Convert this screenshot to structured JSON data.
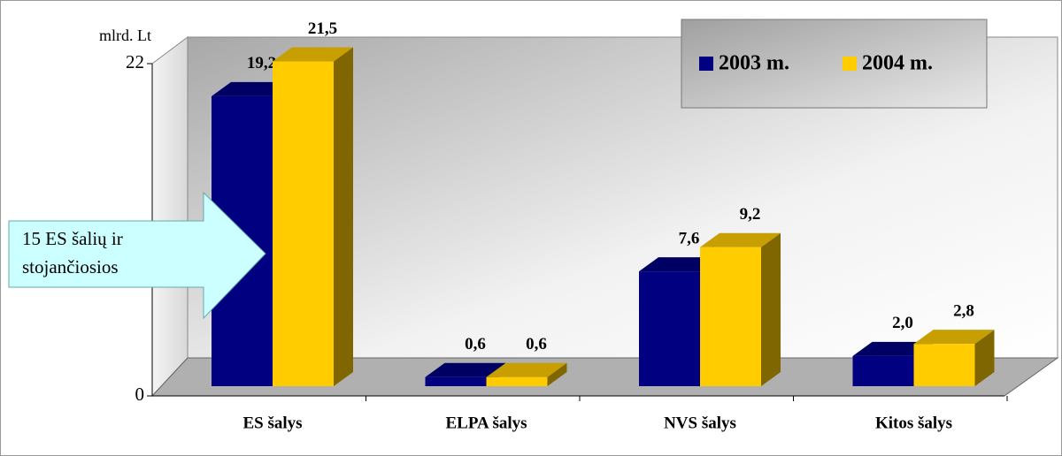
{
  "chart_data": {
    "type": "bar3d",
    "y_label": "mlrd. Lt",
    "categories": [
      "ES šalys",
      "ELPA šalys",
      "NVS šalys",
      "Kitos šalys"
    ],
    "series": [
      {
        "name": "2003 m.",
        "color": "#000080",
        "values": [
          19.2,
          0.6,
          7.6,
          2.0
        ],
        "value_labels": [
          "19,2",
          "0,6",
          "7,6",
          "2,0"
        ]
      },
      {
        "name": "2004 m.",
        "color": "#ffcc00",
        "values": [
          21.5,
          0.6,
          9.2,
          2.8
        ],
        "value_labels": [
          "21,5",
          "0,6",
          "9,2",
          "2,8"
        ]
      }
    ],
    "ylim": [
      0,
      22
    ],
    "yticks": [
      0,
      22
    ],
    "annotation": [
      "15 ES šalių ir",
      "stojančiosios"
    ]
  }
}
